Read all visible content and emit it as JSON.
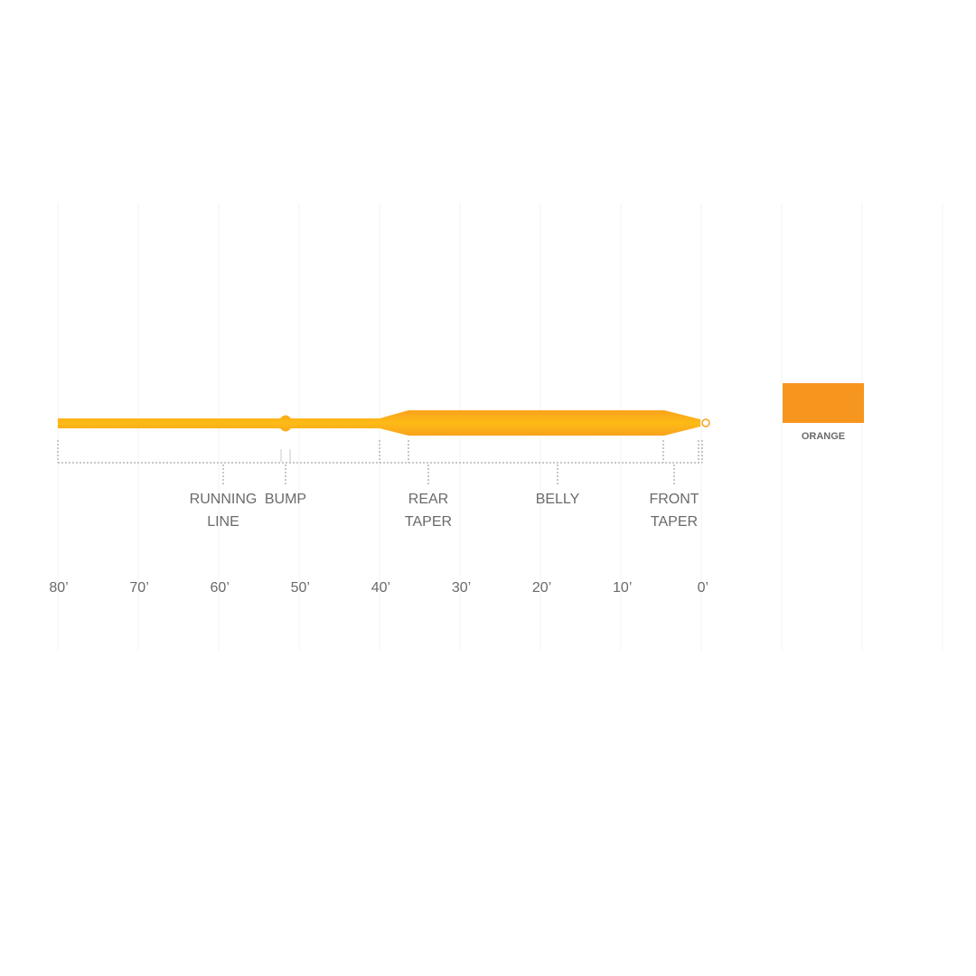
{
  "diagram": {
    "line_color": "#fbb117",
    "sections": [
      {
        "lines": [
          "RUNNING",
          "LINE"
        ]
      },
      {
        "lines": [
          "BUMP"
        ]
      },
      {
        "lines": [
          "REAR",
          "TAPER"
        ]
      },
      {
        "lines": [
          "BELLY"
        ]
      },
      {
        "lines": [
          "FRONT",
          "TAPER"
        ]
      }
    ],
    "axis_labels": [
      "80’",
      "70’",
      "60’",
      "50’",
      "40’",
      "30’",
      "20’",
      "10’",
      "0’"
    ],
    "swatch": {
      "label": "ORANGE",
      "color": "#f7961e"
    }
  }
}
